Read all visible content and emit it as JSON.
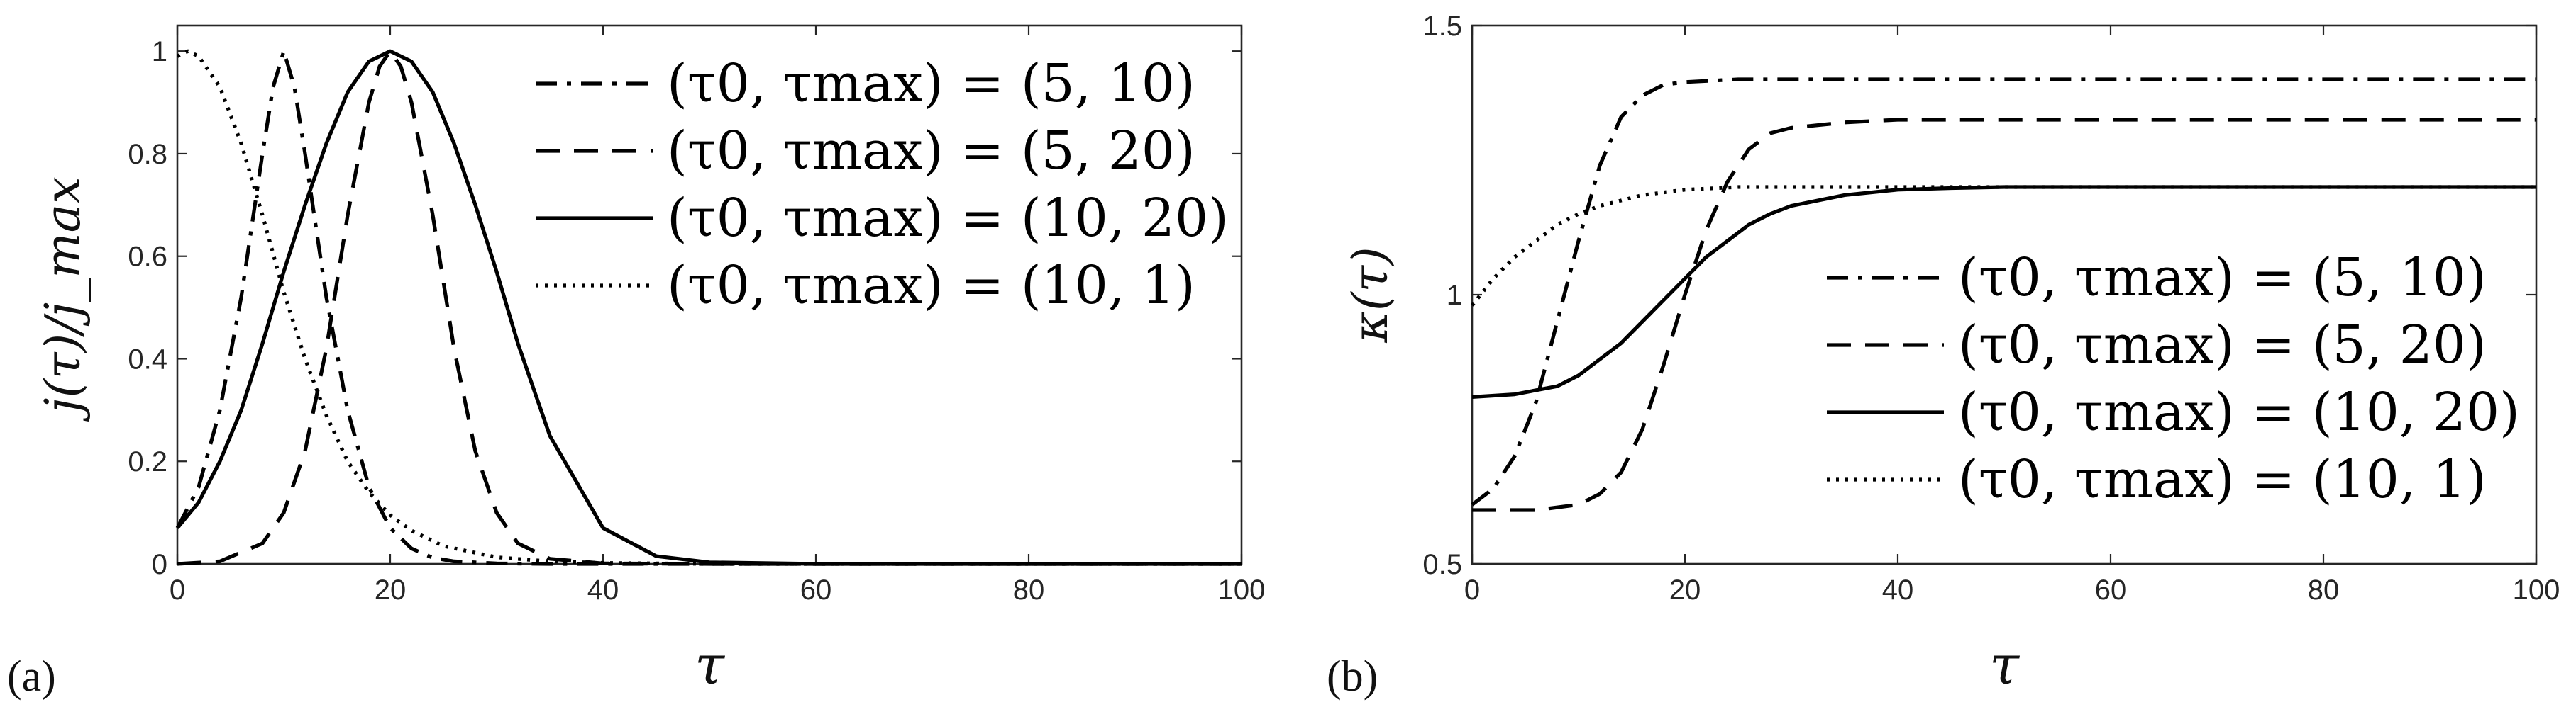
{
  "chart_data": [
    {
      "type": "line",
      "panel_label": "(a)",
      "xlabel": "τ",
      "ylabel": "j(τ)/j_max",
      "xlim": [
        0,
        100
      ],
      "ylim": [
        0,
        1.05
      ],
      "xticks": [
        "0",
        "20",
        "40",
        "60",
        "80",
        "100"
      ],
      "yticks": [
        "0",
        "0.2",
        "0.4",
        "0.6",
        "0.8",
        "1"
      ],
      "legend_location": "top-right",
      "grid": false,
      "series": [
        {
          "name": "(τ0, τmax) = (5, 10)",
          "linestyle": "dashdot",
          "x": [
            0,
            2,
            4,
            6,
            8,
            9,
            10,
            11,
            12,
            14,
            16,
            18,
            20,
            22,
            24,
            26,
            30,
            35,
            40,
            50,
            100
          ],
          "y": [
            0.07,
            0.15,
            0.3,
            0.52,
            0.8,
            0.93,
            1.0,
            0.93,
            0.8,
            0.52,
            0.3,
            0.15,
            0.07,
            0.03,
            0.012,
            0.005,
            0.001,
            0,
            0,
            0,
            0
          ]
        },
        {
          "name": "(τ0, τmax) = (5, 20)",
          "linestyle": "dashed",
          "x": [
            0,
            4,
            8,
            10,
            12,
            14,
            16,
            18,
            19,
            20,
            21,
            22,
            24,
            26,
            28,
            30,
            32,
            35,
            40,
            50,
            100
          ],
          "y": [
            0.0,
            0.005,
            0.04,
            0.1,
            0.22,
            0.42,
            0.68,
            0.9,
            0.97,
            1.0,
            0.97,
            0.9,
            0.68,
            0.42,
            0.22,
            0.1,
            0.04,
            0.01,
            0.001,
            0,
            0
          ]
        },
        {
          "name": "(τ0, τmax) = (10, 20)",
          "linestyle": "solid",
          "x": [
            0,
            2,
            4,
            6,
            8,
            10,
            12,
            14,
            16,
            18,
            20,
            22,
            24,
            26,
            28,
            30,
            32,
            35,
            40,
            45,
            50,
            60,
            70,
            100
          ],
          "y": [
            0.07,
            0.12,
            0.2,
            0.3,
            0.43,
            0.57,
            0.7,
            0.82,
            0.92,
            0.98,
            1.0,
            0.98,
            0.92,
            0.82,
            0.7,
            0.57,
            0.43,
            0.25,
            0.07,
            0.015,
            0.003,
            0,
            0,
            0
          ]
        },
        {
          "name": "(τ0, τmax) = (10, 1)",
          "linestyle": "dotted",
          "x": [
            0,
            1,
            2,
            4,
            6,
            8,
            10,
            12,
            14,
            16,
            18,
            20,
            22,
            25,
            30,
            35,
            40,
            50,
            60,
            100
          ],
          "y": [
            0.99,
            1.0,
            0.99,
            0.93,
            0.82,
            0.68,
            0.53,
            0.4,
            0.29,
            0.2,
            0.14,
            0.095,
            0.065,
            0.035,
            0.013,
            0.005,
            0.002,
            0,
            0,
            0
          ]
        }
      ]
    },
    {
      "type": "line",
      "panel_label": "(b)",
      "xlabel": "τ",
      "ylabel": "κ(τ)",
      "xlim": [
        0,
        100
      ],
      "ylim": [
        0.5,
        1.5
      ],
      "xticks": [
        "0",
        "20",
        "40",
        "60",
        "80",
        "100"
      ],
      "yticks": [
        "0.5",
        "1",
        "1.5"
      ],
      "legend_location": "right",
      "grid": false,
      "series": [
        {
          "name": "(τ0, τmax) = (5, 10)",
          "linestyle": "dashdot",
          "x": [
            0,
            2,
            4,
            6,
            8,
            10,
            12,
            14,
            16,
            18,
            20,
            25,
            30,
            40,
            100
          ],
          "y": [
            0.61,
            0.64,
            0.7,
            0.8,
            0.95,
            1.1,
            1.24,
            1.33,
            1.37,
            1.39,
            1.395,
            1.4,
            1.4,
            1.4,
            1.4
          ]
        },
        {
          "name": "(τ0, τmax) = (5, 20)",
          "linestyle": "dashed",
          "x": [
            0,
            6,
            10,
            12,
            14,
            16,
            18,
            20,
            22,
            24,
            26,
            28,
            30,
            35,
            40,
            100
          ],
          "y": [
            0.6,
            0.6,
            0.61,
            0.63,
            0.67,
            0.75,
            0.87,
            1.0,
            1.12,
            1.21,
            1.27,
            1.3,
            1.31,
            1.32,
            1.325,
            1.325
          ]
        },
        {
          "name": "(τ0, τmax) = (10, 20)",
          "linestyle": "solid",
          "x": [
            0,
            4,
            8,
            10,
            12,
            14,
            16,
            18,
            20,
            22,
            24,
            26,
            28,
            30,
            35,
            40,
            45,
            50,
            100
          ],
          "y": [
            0.81,
            0.815,
            0.83,
            0.85,
            0.88,
            0.91,
            0.95,
            0.99,
            1.03,
            1.07,
            1.1,
            1.13,
            1.15,
            1.165,
            1.185,
            1.195,
            1.198,
            1.2,
            1.2
          ]
        },
        {
          "name": "(τ0, τmax) = (10, 1)",
          "linestyle": "dotted",
          "x": [
            0,
            2,
            4,
            6,
            8,
            10,
            12,
            14,
            16,
            18,
            20,
            25,
            30,
            100
          ],
          "y": [
            0.98,
            1.03,
            1.07,
            1.1,
            1.13,
            1.15,
            1.165,
            1.175,
            1.185,
            1.19,
            1.195,
            1.2,
            1.2,
            1.2
          ]
        }
      ]
    }
  ]
}
